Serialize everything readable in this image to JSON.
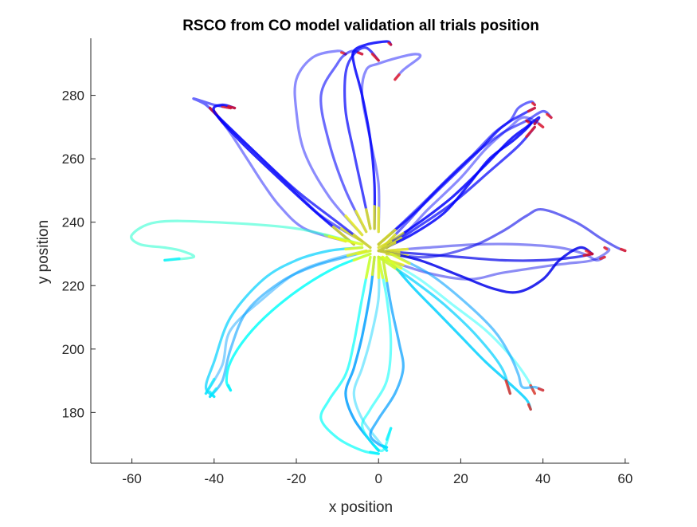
{
  "chart_data": {
    "type": "line",
    "title": "RSCO from CO model validation all trials position",
    "xlabel": "x position",
    "ylabel": "y position",
    "xlim": [
      -70,
      61
    ],
    "ylim": [
      164,
      298
    ],
    "xticks": [
      -60,
      -40,
      -20,
      0,
      20,
      40,
      60
    ],
    "yticks": [
      180,
      200,
      220,
      240,
      260,
      280
    ],
    "grid": false,
    "legend": "none",
    "colormap": "jet",
    "colors": {
      "axis": "#262626",
      "jet_stops": [
        "#00008f",
        "#0000ff",
        "#0080ff",
        "#00ffff",
        "#80ff80",
        "#ffff00",
        "#ff8000",
        "#ff0000",
        "#800000"
      ]
    },
    "series": [
      {
        "x": [
          -8,
          -18,
          -24,
          -28,
          -32,
          -36,
          -40
        ],
        "y": [
          234,
          238,
          245,
          252,
          260,
          268,
          275
        ]
      },
      {
        "x": [
          -4,
          -14,
          -22,
          -30,
          -38,
          -42,
          -45,
          -40,
          -36
        ],
        "y": [
          234,
          242,
          252,
          262,
          272,
          277,
          279,
          277,
          276
        ]
      },
      {
        "x": [
          -2,
          -10,
          -20,
          -30,
          -38,
          -41
        ],
        "y": [
          232,
          240,
          250,
          262,
          272,
          276
        ]
      },
      {
        "x": [
          -6,
          -16,
          -26,
          -34,
          -40,
          -38,
          -35
        ],
        "y": [
          233,
          244,
          256,
          266,
          275,
          277,
          276
        ]
      },
      {
        "x": [
          -4,
          -12,
          -18,
          -20,
          -20,
          -16,
          -10,
          -8
        ],
        "y": [
          236,
          248,
          262,
          275,
          285,
          292,
          294,
          293
        ]
      },
      {
        "x": [
          -3,
          -8,
          -12,
          -14,
          -10,
          -8,
          -6,
          -4
        ],
        "y": [
          237,
          250,
          265,
          280,
          290,
          293,
          294,
          293
        ]
      },
      {
        "x": [
          -2,
          -4,
          -6,
          -8,
          -8,
          -6,
          -3,
          0
        ],
        "y": [
          238,
          250,
          262,
          275,
          287,
          293,
          295,
          291
        ]
      },
      {
        "x": [
          -1,
          -1,
          -2,
          -4,
          -6,
          -6,
          -3,
          2,
          3
        ],
        "y": [
          238,
          252,
          266,
          280,
          290,
          294,
          296,
          297,
          296
        ]
      },
      {
        "x": [
          0,
          0,
          -2,
          -4,
          -3,
          0,
          5,
          9,
          10,
          6,
          4
        ],
        "y": [
          237,
          252,
          266,
          280,
          288,
          290,
          292,
          293,
          292,
          288,
          285
        ]
      },
      {
        "x": [
          0,
          6,
          14,
          22,
          28,
          32,
          34,
          37,
          38
        ],
        "y": [
          233,
          240,
          250,
          260,
          268,
          272,
          276,
          278,
          277
        ]
      },
      {
        "x": [
          0,
          8,
          16,
          24,
          30,
          35,
          38
        ],
        "y": [
          233,
          242,
          252,
          262,
          270,
          274,
          276
        ]
      },
      {
        "x": [
          2,
          10,
          18,
          26,
          32,
          36,
          39,
          38
        ],
        "y": [
          233,
          240,
          248,
          258,
          266,
          270,
          273,
          271
        ]
      },
      {
        "x": [
          0,
          6,
          12,
          20,
          26,
          32,
          35,
          38,
          40
        ],
        "y": [
          232,
          236,
          244,
          254,
          263,
          270,
          273,
          272,
          270
        ]
      },
      {
        "x": [
          1,
          7,
          14,
          22,
          30,
          36,
          40,
          42
        ],
        "y": [
          232,
          240,
          250,
          260,
          268,
          272,
          275,
          273
        ]
      },
      {
        "x": [
          2,
          9,
          18,
          27,
          34,
          38
        ],
        "y": [
          232,
          238,
          246,
          256,
          264,
          270
        ]
      },
      {
        "x": [
          0,
          8,
          16,
          22,
          27,
          33,
          37,
          36
        ],
        "y": [
          231,
          236,
          243,
          252,
          260,
          266,
          271,
          272
        ]
      },
      {
        "x": [
          2,
          12,
          24,
          34,
          44,
          50,
          53,
          55
        ],
        "y": [
          231,
          232,
          233,
          233,
          232,
          230,
          228,
          229
        ]
      },
      {
        "x": [
          2,
          12,
          22,
          30,
          36,
          40,
          48,
          54,
          58,
          60
        ],
        "y": [
          230,
          229,
          232,
          237,
          242,
          244,
          240,
          235,
          232,
          231
        ]
      },
      {
        "x": [
          0,
          10,
          20,
          30,
          40,
          48,
          52
        ],
        "y": [
          231,
          230,
          229,
          228,
          228,
          229,
          230
        ]
      },
      {
        "x": [
          0,
          10,
          20,
          28,
          34,
          40,
          44,
          49,
          52
        ],
        "y": [
          231,
          228,
          223,
          219,
          218,
          222,
          228,
          232,
          230
        ]
      },
      {
        "x": [
          0,
          12,
          22,
          30,
          40,
          46,
          52,
          56,
          55
        ],
        "y": [
          229,
          224,
          222,
          224,
          226,
          227,
          228,
          231,
          232
        ]
      },
      {
        "x": [
          -2,
          -8,
          -16,
          -24,
          -32,
          -36,
          -38,
          -41
        ],
        "y": [
          231,
          229,
          226,
          221,
          212,
          200,
          190,
          185
        ]
      },
      {
        "x": [
          -4,
          -12,
          -20,
          -28,
          -36,
          -40,
          -42,
          -40
        ],
        "y": [
          232,
          231,
          228,
          222,
          210,
          196,
          188,
          185
        ]
      },
      {
        "x": [
          -2,
          -10,
          -18,
          -26,
          -32,
          -36,
          -37,
          -36
        ],
        "y": [
          230,
          226,
          220,
          212,
          204,
          196,
          190,
          187
        ]
      },
      {
        "x": [
          -3,
          -12,
          -20,
          -28,
          -36,
          -38,
          -42
        ],
        "y": [
          231,
          228,
          224,
          216,
          206,
          195,
          186
        ]
      },
      {
        "x": [
          -4,
          -20,
          -40,
          -54,
          -60,
          -58,
          -52,
          -48,
          -45,
          -52
        ],
        "y": [
          233,
          238,
          240,
          240,
          236,
          233,
          232,
          231,
          229,
          228
        ]
      },
      {
        "x": [
          -2,
          -4,
          -6,
          -8,
          -12,
          -14,
          -10,
          -4,
          0
        ],
        "y": [
          229,
          216,
          202,
          192,
          184,
          178,
          172,
          168,
          167
        ]
      },
      {
        "x": [
          -1,
          -2,
          -4,
          -6,
          -8,
          -6,
          -2,
          0
        ],
        "y": [
          229,
          218,
          204,
          194,
          186,
          178,
          171,
          168
        ]
      },
      {
        "x": [
          0,
          0,
          -2,
          -4,
          -6,
          -4,
          0,
          2
        ],
        "y": [
          229,
          216,
          203,
          194,
          186,
          178,
          171,
          168
        ]
      },
      {
        "x": [
          0,
          2,
          3,
          2,
          -2,
          -4,
          -2,
          1,
          3
        ],
        "y": [
          229,
          216,
          202,
          190,
          181,
          176,
          171,
          168,
          175
        ]
      },
      {
        "x": [
          1,
          3,
          5,
          6,
          4,
          0,
          -2,
          0,
          2
        ],
        "y": [
          229,
          214,
          202,
          194,
          186,
          178,
          173,
          170,
          169
        ]
      },
      {
        "x": [
          2,
          8,
          14,
          20,
          26,
          32,
          36,
          37
        ],
        "y": [
          229,
          220,
          212,
          204,
          196,
          189,
          184,
          181
        ]
      },
      {
        "x": [
          1,
          10,
          18,
          26,
          32,
          36,
          38
        ],
        "y": [
          229,
          222,
          214,
          206,
          198,
          191,
          186
        ]
      },
      {
        "x": [
          3,
          12,
          20,
          28,
          32,
          34,
          35,
          38,
          40
        ],
        "y": [
          230,
          224,
          216,
          206,
          198,
          192,
          188,
          188,
          187
        ]
      },
      {
        "x": [
          0,
          8,
          16,
          24,
          30,
          32
        ],
        "y": [
          229,
          222,
          214,
          204,
          194,
          186
        ]
      }
    ]
  }
}
